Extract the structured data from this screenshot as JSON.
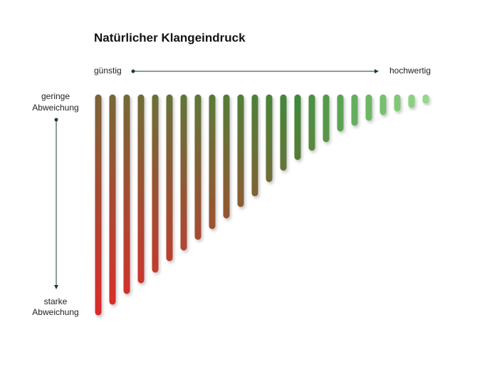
{
  "chart_data": {
    "type": "bar",
    "title": "Natürlicher Klangeindruck",
    "x_axis": {
      "start_label": "günstig",
      "end_label": "hochwertig"
    },
    "y_axis": {
      "start_label": [
        "geringe",
        "Abweichung"
      ],
      "end_label": [
        "starke",
        "Abweichung"
      ]
    },
    "values": [
      301,
      286,
      271,
      256,
      241,
      225,
      210,
      195,
      180,
      165,
      149,
      134,
      114,
      98,
      83,
      70,
      58,
      43,
      35,
      28,
      20,
      15,
      10,
      4
    ],
    "ylim": [
      0,
      310
    ],
    "colors": {
      "low": "#e0282a",
      "mid": "#7b6538",
      "high": "#3f8a3a",
      "light": "#95d98a"
    }
  }
}
